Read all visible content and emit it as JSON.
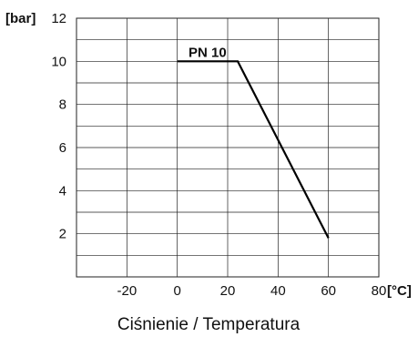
{
  "chart_data": {
    "type": "line",
    "title": "Ciśnienie / Temperatura",
    "xlabel": "[°C]",
    "ylabel": "[bar]",
    "xlim": [
      -40,
      80
    ],
    "ylim": [
      0,
      12
    ],
    "x_ticks": [
      -20,
      0,
      20,
      40,
      60,
      80
    ],
    "y_ticks": [
      2,
      4,
      6,
      8,
      10,
      12
    ],
    "grid": true,
    "series": [
      {
        "name": "PN 10",
        "x": [
          0,
          24,
          60
        ],
        "y": [
          10,
          10,
          1.8
        ],
        "color": "#000000"
      }
    ]
  }
}
